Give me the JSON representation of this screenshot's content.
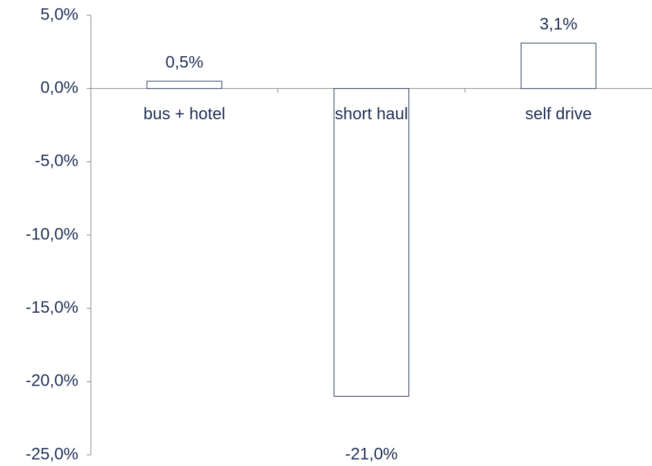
{
  "chart_data": {
    "type": "bar",
    "categories": [
      "bus + hotel",
      "short haul",
      "self drive"
    ],
    "values": [
      0.5,
      -21.0,
      3.1
    ],
    "value_labels": [
      "0,5%",
      "-21,0%",
      "3,1%"
    ],
    "color": "#ffffff",
    "ylim": [
      -25,
      5
    ],
    "yticks": [
      {
        "value": -25,
        "label": "-25,0%"
      },
      {
        "value": -20,
        "label": "-20,0%"
      },
      {
        "value": -15,
        "label": "-15,0%"
      },
      {
        "value": -10,
        "label": "-10,0%"
      },
      {
        "value": -5,
        "label": "-5,0%"
      },
      {
        "value": 0,
        "label": "0,0%"
      },
      {
        "value": 5,
        "label": "5,0%"
      }
    ],
    "grid": false
  }
}
